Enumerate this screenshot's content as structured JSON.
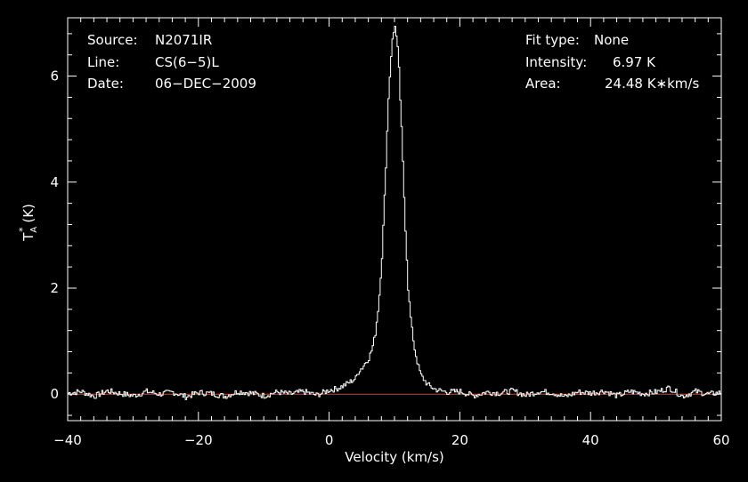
{
  "chart_data": {
    "type": "line",
    "title": "",
    "xlabel": "Velocity (km/s)",
    "ylabel_main": "T",
    "ylabel_sub": "A",
    "ylabel_sup": "*",
    "ylabel_unit": " (K)",
    "xlim": [
      -40,
      60
    ],
    "ylim": [
      -0.5,
      7.1
    ],
    "x_ticks": [
      -40,
      -20,
      0,
      20,
      40,
      60
    ],
    "x_tick_labels": [
      "−40",
      "−20",
      "0",
      "20",
      "40",
      "60"
    ],
    "y_ticks": [
      0,
      2,
      4,
      6
    ],
    "y_tick_labels": [
      "0",
      "2",
      "4",
      "6"
    ],
    "baseline": 0,
    "colors": {
      "spectrum": "#ffffff",
      "baseline": "#ff2a2a",
      "axes": "#ffffff",
      "background": "#000000"
    },
    "series": [
      {
        "values_description_x": "velocity (km/s)",
        "x": [
          -40,
          -38,
          -36,
          -34,
          -32,
          -30,
          -28,
          -26,
          -24,
          -22,
          -20,
          -18,
          -16,
          -14,
          -12,
          -10,
          -8,
          -6,
          -4,
          -2,
          0,
          1,
          2,
          3,
          4,
          4.5,
          5,
          5.5,
          6,
          6.5,
          7,
          7.5,
          8,
          8.5,
          9,
          9.5,
          10,
          10.5,
          11,
          11.5,
          12,
          12.5,
          13,
          13.5,
          14,
          15,
          16,
          17,
          18,
          20,
          22,
          24,
          26,
          28,
          30,
          32,
          34,
          36,
          38,
          40,
          42,
          44,
          46,
          48,
          50,
          52,
          54,
          56,
          58,
          60
        ],
        "y": [
          0.02,
          0.05,
          -0.04,
          0.06,
          0.01,
          -0.03,
          0.05,
          0.0,
          0.04,
          -0.05,
          0.03,
          0.01,
          -0.04,
          0.05,
          0.02,
          -0.03,
          0.04,
          0.0,
          0.05,
          -0.02,
          0.08,
          0.1,
          0.15,
          0.22,
          0.3,
          0.45,
          0.5,
          0.6,
          0.68,
          0.85,
          1.15,
          1.7,
          2.6,
          4.0,
          5.6,
          6.6,
          6.97,
          6.4,
          5.0,
          3.4,
          2.0,
          1.3,
          0.85,
          0.55,
          0.35,
          0.18,
          0.1,
          0.06,
          0.04,
          0.05,
          -0.03,
          0.04,
          0.02,
          0.06,
          -0.02,
          0.05,
          0.03,
          -0.05,
          0.04,
          0.02,
          0.06,
          -0.03,
          0.05,
          0.01,
          0.04,
          0.12,
          -0.04,
          0.05,
          0.0,
          0.03
        ]
      }
    ]
  },
  "info_left": [
    {
      "key": "Source:",
      "value": "N2071IR"
    },
    {
      "key": "Line:",
      "value": "CS(6−5)L"
    },
    {
      "key": "Date:",
      "value": "06−DEC−2009"
    }
  ],
  "info_right": [
    {
      "key": "Fit type:",
      "value": "None"
    },
    {
      "key": "Intensity:",
      "value": "6.97 K"
    },
    {
      "key": "Area:",
      "value": "24.48 K∗km/s"
    }
  ]
}
